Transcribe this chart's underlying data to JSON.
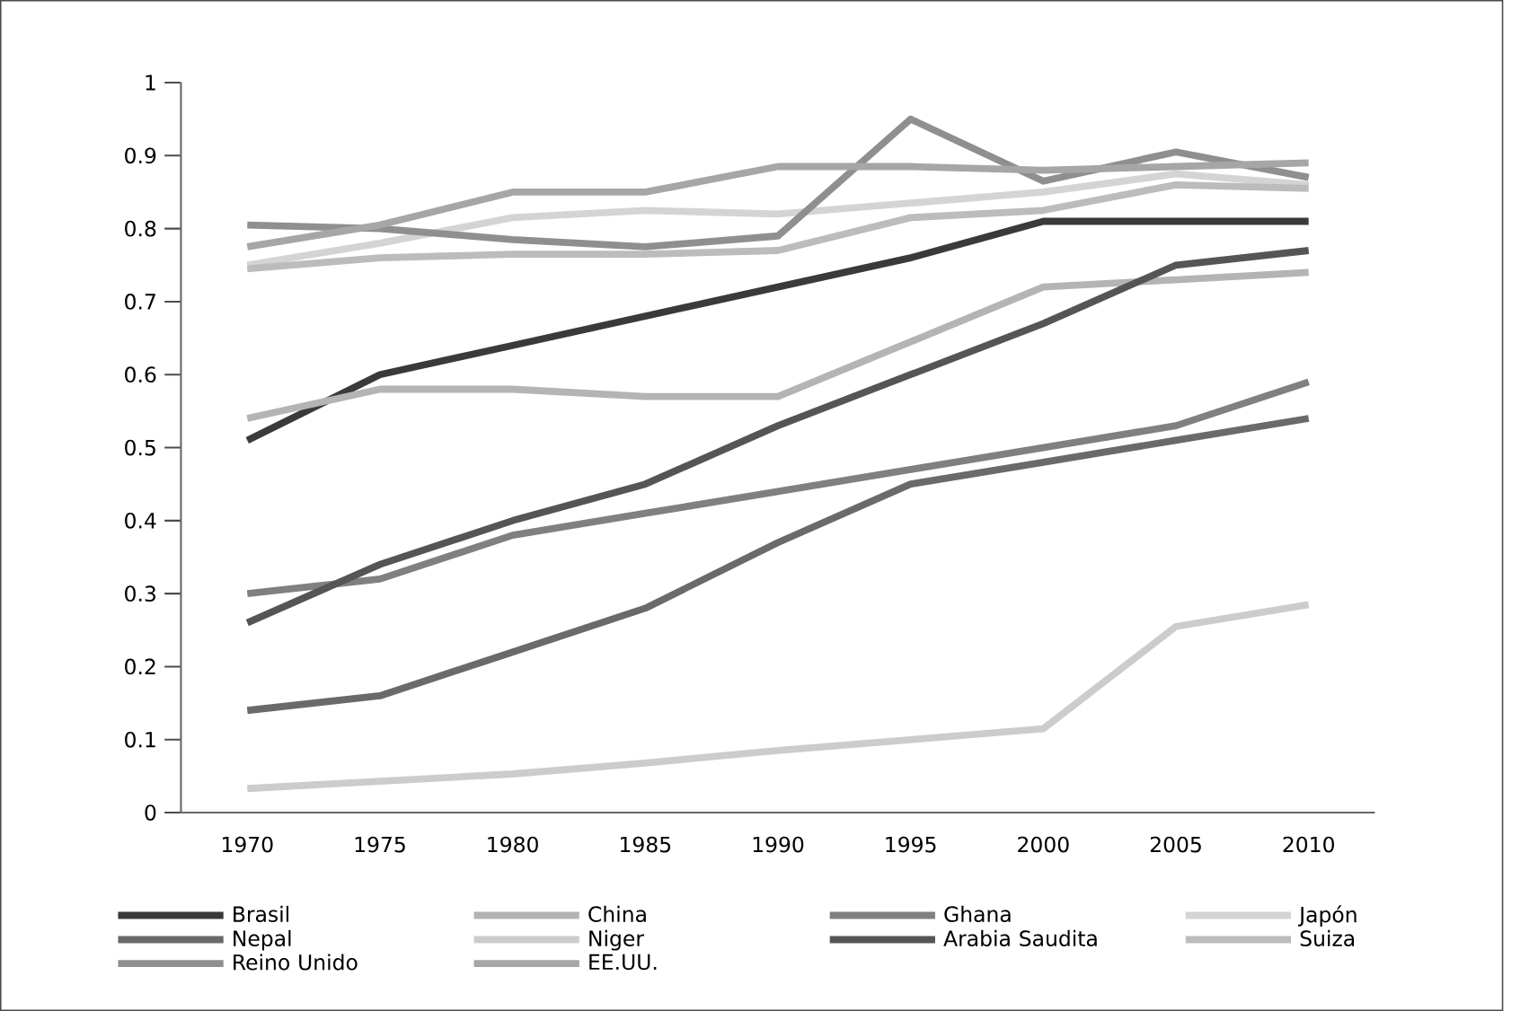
{
  "chart_data": {
    "type": "line",
    "categories": [
      "1970",
      "1975",
      "1980",
      "1985",
      "1990",
      "1995",
      "2000",
      "2005",
      "2010"
    ],
    "ylim": [
      0,
      1
    ],
    "yticks": [
      0,
      0.1,
      0.2,
      0.3,
      0.4,
      0.5,
      0.6,
      0.7,
      0.8,
      0.9,
      1
    ],
    "legend": "bottom",
    "series": [
      {
        "name": "Brasil",
        "color": "#3a3a3a",
        "values": [
          0.51,
          0.6,
          0.64,
          0.68,
          0.72,
          0.76,
          0.81,
          0.81,
          0.81
        ]
      },
      {
        "name": "China",
        "color": "#b4b4b4",
        "values": [
          0.54,
          0.58,
          0.58,
          0.57,
          0.57,
          0.645,
          0.72,
          0.73,
          0.74
        ]
      },
      {
        "name": "Ghana",
        "color": "#808080",
        "values": [
          0.3,
          0.32,
          0.38,
          0.41,
          0.44,
          0.47,
          0.5,
          0.53,
          0.59
        ]
      },
      {
        "name": "Japón",
        "color": "#d4d4d4",
        "values": [
          0.75,
          0.78,
          0.815,
          0.825,
          0.82,
          0.835,
          0.85,
          0.875,
          0.86
        ]
      },
      {
        "name": "Nepal",
        "color": "#6a6a6a",
        "values": [
          0.14,
          0.16,
          0.22,
          0.28,
          0.37,
          0.45,
          0.48,
          0.51,
          0.54
        ]
      },
      {
        "name": "Niger",
        "color": "#cccccc",
        "values": [
          0.033,
          0.043,
          0.053,
          0.068,
          0.085,
          0.1,
          0.115,
          0.255,
          0.285
        ]
      },
      {
        "name": "Arabia Saudita",
        "color": "#555555",
        "values": [
          0.26,
          0.34,
          0.4,
          0.45,
          0.53,
          0.6,
          0.67,
          0.75,
          0.77
        ]
      },
      {
        "name": "Suiza",
        "color": "#bcbcbc",
        "values": [
          0.745,
          0.76,
          0.765,
          0.765,
          0.77,
          0.815,
          0.825,
          0.86,
          0.855
        ]
      },
      {
        "name": "Reino Unido",
        "color": "#8f8f8f",
        "values": [
          0.805,
          0.8,
          0.785,
          0.775,
          0.79,
          0.95,
          0.865,
          0.905,
          0.87
        ]
      },
      {
        "name": "EE.UU.",
        "color": "#a6a6a6",
        "values": [
          0.775,
          0.805,
          0.85,
          0.85,
          0.885,
          0.885,
          0.88,
          0.885,
          0.89
        ]
      }
    ]
  }
}
